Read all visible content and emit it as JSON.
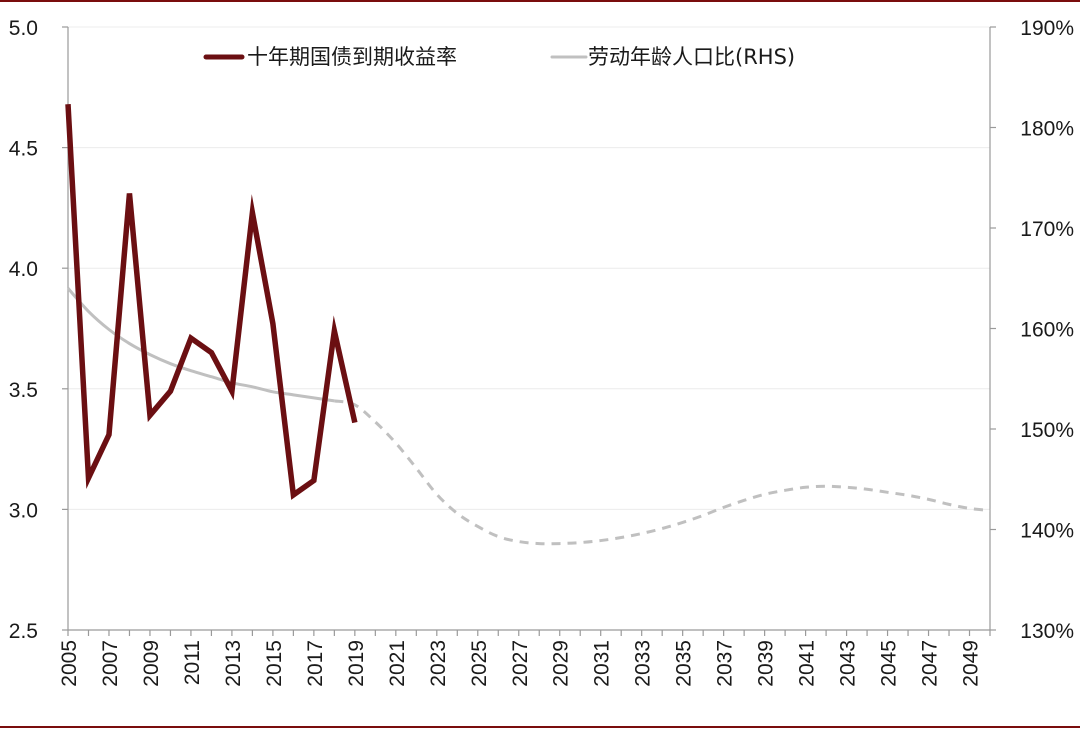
{
  "chart_data": {
    "type": "line",
    "title": "",
    "legend_position": "top",
    "grid": true,
    "x_axis": {
      "range": [
        2005,
        2050
      ],
      "tick_labels": [
        "2005",
        "2007",
        "2009",
        "2011",
        "2013",
        "2015",
        "2017",
        "2019",
        "2021",
        "2023",
        "2025",
        "2027",
        "2029",
        "2031",
        "2033",
        "2035",
        "2037",
        "2039",
        "2041",
        "2043",
        "2045",
        "2047",
        "2049"
      ]
    },
    "y_left": {
      "range": [
        2.5,
        5.0
      ],
      "tick_labels": [
        "2.5",
        "3.0",
        "3.5",
        "4.0",
        "4.5",
        "5.0"
      ]
    },
    "y_right": {
      "range": [
        130,
        190
      ],
      "tick_labels": [
        "130%",
        "140%",
        "150%",
        "160%",
        "170%",
        "180%",
        "190%"
      ]
    },
    "series": [
      {
        "name": "十年期国债到期收益率",
        "axis": "left",
        "color": "#6b0f12",
        "style": "solid-thick",
        "points": [
          [
            2005,
            4.68
          ],
          [
            2006,
            3.13
          ],
          [
            2007,
            3.31
          ],
          [
            2008,
            4.31
          ],
          [
            2009,
            3.39
          ],
          [
            2010,
            3.49
          ],
          [
            2011,
            3.71
          ],
          [
            2012,
            3.65
          ],
          [
            2013,
            3.49
          ],
          [
            2014,
            4.23
          ],
          [
            2015,
            3.77
          ],
          [
            2016,
            3.06
          ],
          [
            2017,
            3.12
          ],
          [
            2018,
            3.74
          ],
          [
            2019,
            3.36
          ]
        ]
      },
      {
        "name": "劳动年龄人口比(RHS)",
        "axis": "right",
        "color": "#c0c0c0",
        "style": "solid-then-dashed",
        "dashed_from": 2018,
        "points": [
          [
            2005,
            164.0
          ],
          [
            2006,
            161.7
          ],
          [
            2007,
            159.9
          ],
          [
            2008,
            158.5
          ],
          [
            2009,
            157.4
          ],
          [
            2010,
            156.5
          ],
          [
            2011,
            155.8
          ],
          [
            2012,
            155.2
          ],
          [
            2013,
            154.6
          ],
          [
            2014,
            154.2
          ],
          [
            2015,
            153.7
          ],
          [
            2016,
            153.4
          ],
          [
            2017,
            153.1
          ],
          [
            2018,
            152.8
          ],
          [
            2019,
            152.4
          ],
          [
            2020,
            150.7
          ],
          [
            2021,
            148.6
          ],
          [
            2022,
            146.1
          ],
          [
            2023,
            143.5
          ],
          [
            2024,
            141.6
          ],
          [
            2025,
            140.3
          ],
          [
            2026,
            139.3
          ],
          [
            2027,
            138.8
          ],
          [
            2028,
            138.6
          ],
          [
            2029,
            138.6
          ],
          [
            2030,
            138.7
          ],
          [
            2031,
            138.9
          ],
          [
            2032,
            139.2
          ],
          [
            2033,
            139.6
          ],
          [
            2034,
            140.1
          ],
          [
            2035,
            140.7
          ],
          [
            2036,
            141.4
          ],
          [
            2037,
            142.2
          ],
          [
            2038,
            142.9
          ],
          [
            2039,
            143.5
          ],
          [
            2040,
            143.9
          ],
          [
            2041,
            144.2
          ],
          [
            2042,
            144.3
          ],
          [
            2043,
            144.2
          ],
          [
            2044,
            144.0
          ],
          [
            2045,
            143.7
          ],
          [
            2046,
            143.4
          ],
          [
            2047,
            143.0
          ],
          [
            2048,
            142.5
          ],
          [
            2049,
            142.1
          ],
          [
            2050,
            141.9
          ]
        ]
      }
    ]
  }
}
